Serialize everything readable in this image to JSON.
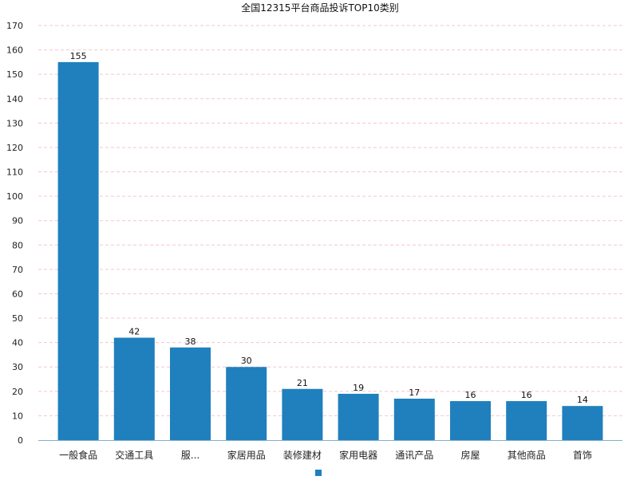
{
  "chart_data": {
    "type": "bar",
    "title": "全国12315平台商品投诉TOP10类别",
    "categories": [
      "一般食品",
      "交通工具",
      "服...",
      "家居用品",
      "装修建材",
      "家用电器",
      "通讯产品",
      "房屋",
      "其他商品",
      "首饰"
    ],
    "values": [
      155,
      42,
      38,
      30,
      21,
      19,
      17,
      16,
      16,
      14
    ],
    "ylim": [
      0,
      170
    ],
    "yticks": [
      0,
      10,
      20,
      30,
      40,
      50,
      60,
      70,
      80,
      90,
      100,
      110,
      120,
      130,
      140,
      150,
      160,
      170
    ],
    "xlabel": "",
    "ylabel": "",
    "grid": true,
    "legend": "bottom-center",
    "colors": {
      "bar": "#1f80bd",
      "grid": "#f4c6d0",
      "axis": "#7fb2cf"
    }
  }
}
